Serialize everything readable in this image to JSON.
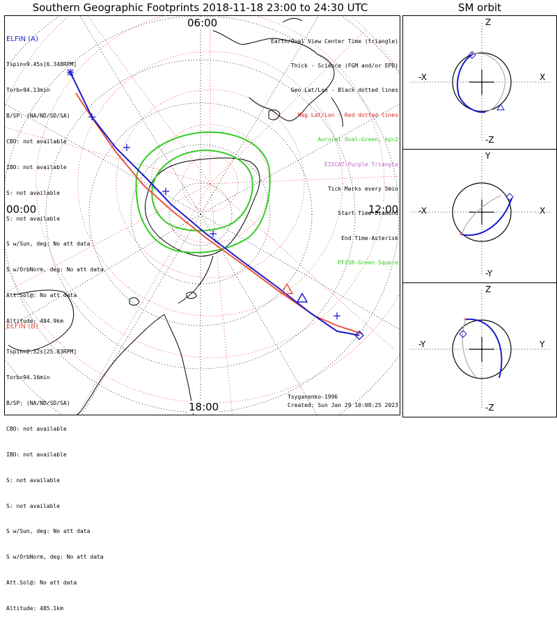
{
  "title": "Southern Geographic Footprints 2018-11-18 23:00 to 24:30 UTC",
  "orbit_title": "SM orbit",
  "clock_labels": {
    "top": "06:00",
    "left": "00:00",
    "right": "12:00",
    "bottom": "18:00"
  },
  "elfin_a": {
    "name": "ELFIN (A)",
    "color": "#1a1acc",
    "lines": [
      "Tspin=9.45s[6.348RPM]",
      "Torb=94.13min",
      "B/SP: (NA/ND/SD/SA)",
      "CBO: not available",
      "IBO: not available",
      "S: not available",
      "S: not available",
      "S w/Sun, deg: No att data",
      "S w/OrbNorm, deg: No att data",
      "Att.Sol@: No att data",
      "Altitude: 484.9km"
    ]
  },
  "elfin_b": {
    "name": "ELFIN (B)",
    "color": "#e8543c",
    "lines": [
      "Tspin=2.32s[25.83RPM]",
      "Torb=94.16min",
      "B/SP: (NA/ND/SD/SA)",
      "CBO: not available",
      "IBO: not available",
      "S: not available",
      "S: not available",
      "S w/Sun, deg: No att data",
      "S w/OrbNorm, deg: No att data",
      "Att.Sol@: No att data",
      "Altitude: 485.1km"
    ]
  },
  "legend": [
    {
      "text": "Earth/Oval View Center Time (triangle)",
      "color": "#000000"
    },
    {
      "text": "Thick - Science (FGM and/or EPD)",
      "color": "#000000"
    },
    {
      "text": "Geo Lat/Lon - Black dotted lines",
      "color": "#000000"
    },
    {
      "text": "Mag Lat/Lon - Red dotted lines",
      "color": "#e0201e"
    },
    {
      "text": "Auroral Oval-Green, kp=2",
      "color": "#33cc22"
    },
    {
      "text": "EISCAT-Purple Triangle",
      "color": "#c060d0"
    },
    {
      "text": "Tick Marks every 5min",
      "color": "#000000"
    },
    {
      "text": "Start Time-Diamond",
      "color": "#000000"
    },
    {
      "text": "End Time-Asterisk",
      "color": "#000000"
    },
    {
      "text": "PFISR-Green Square",
      "color": "#33cc22"
    }
  ],
  "footer": {
    "credit": "Tsyganenko-1996",
    "created": "Created: Sun Jan 29 10:08:25 2023"
  },
  "orbit_panels": [
    {
      "top": "Z",
      "bottom": "-Z",
      "left": "-X",
      "right": "X"
    },
    {
      "top": "Y",
      "bottom": "-Y",
      "left": "-X",
      "right": "X"
    },
    {
      "top": "Z",
      "bottom": "-Z",
      "left": "-Y",
      "right": "Y"
    }
  ],
  "colors": {
    "elfin_a": "#1a1acc",
    "elfin_b": "#e8543c",
    "oval": "#33cc22",
    "geo_grid": "#000000",
    "mag_grid": "#e0201e"
  }
}
